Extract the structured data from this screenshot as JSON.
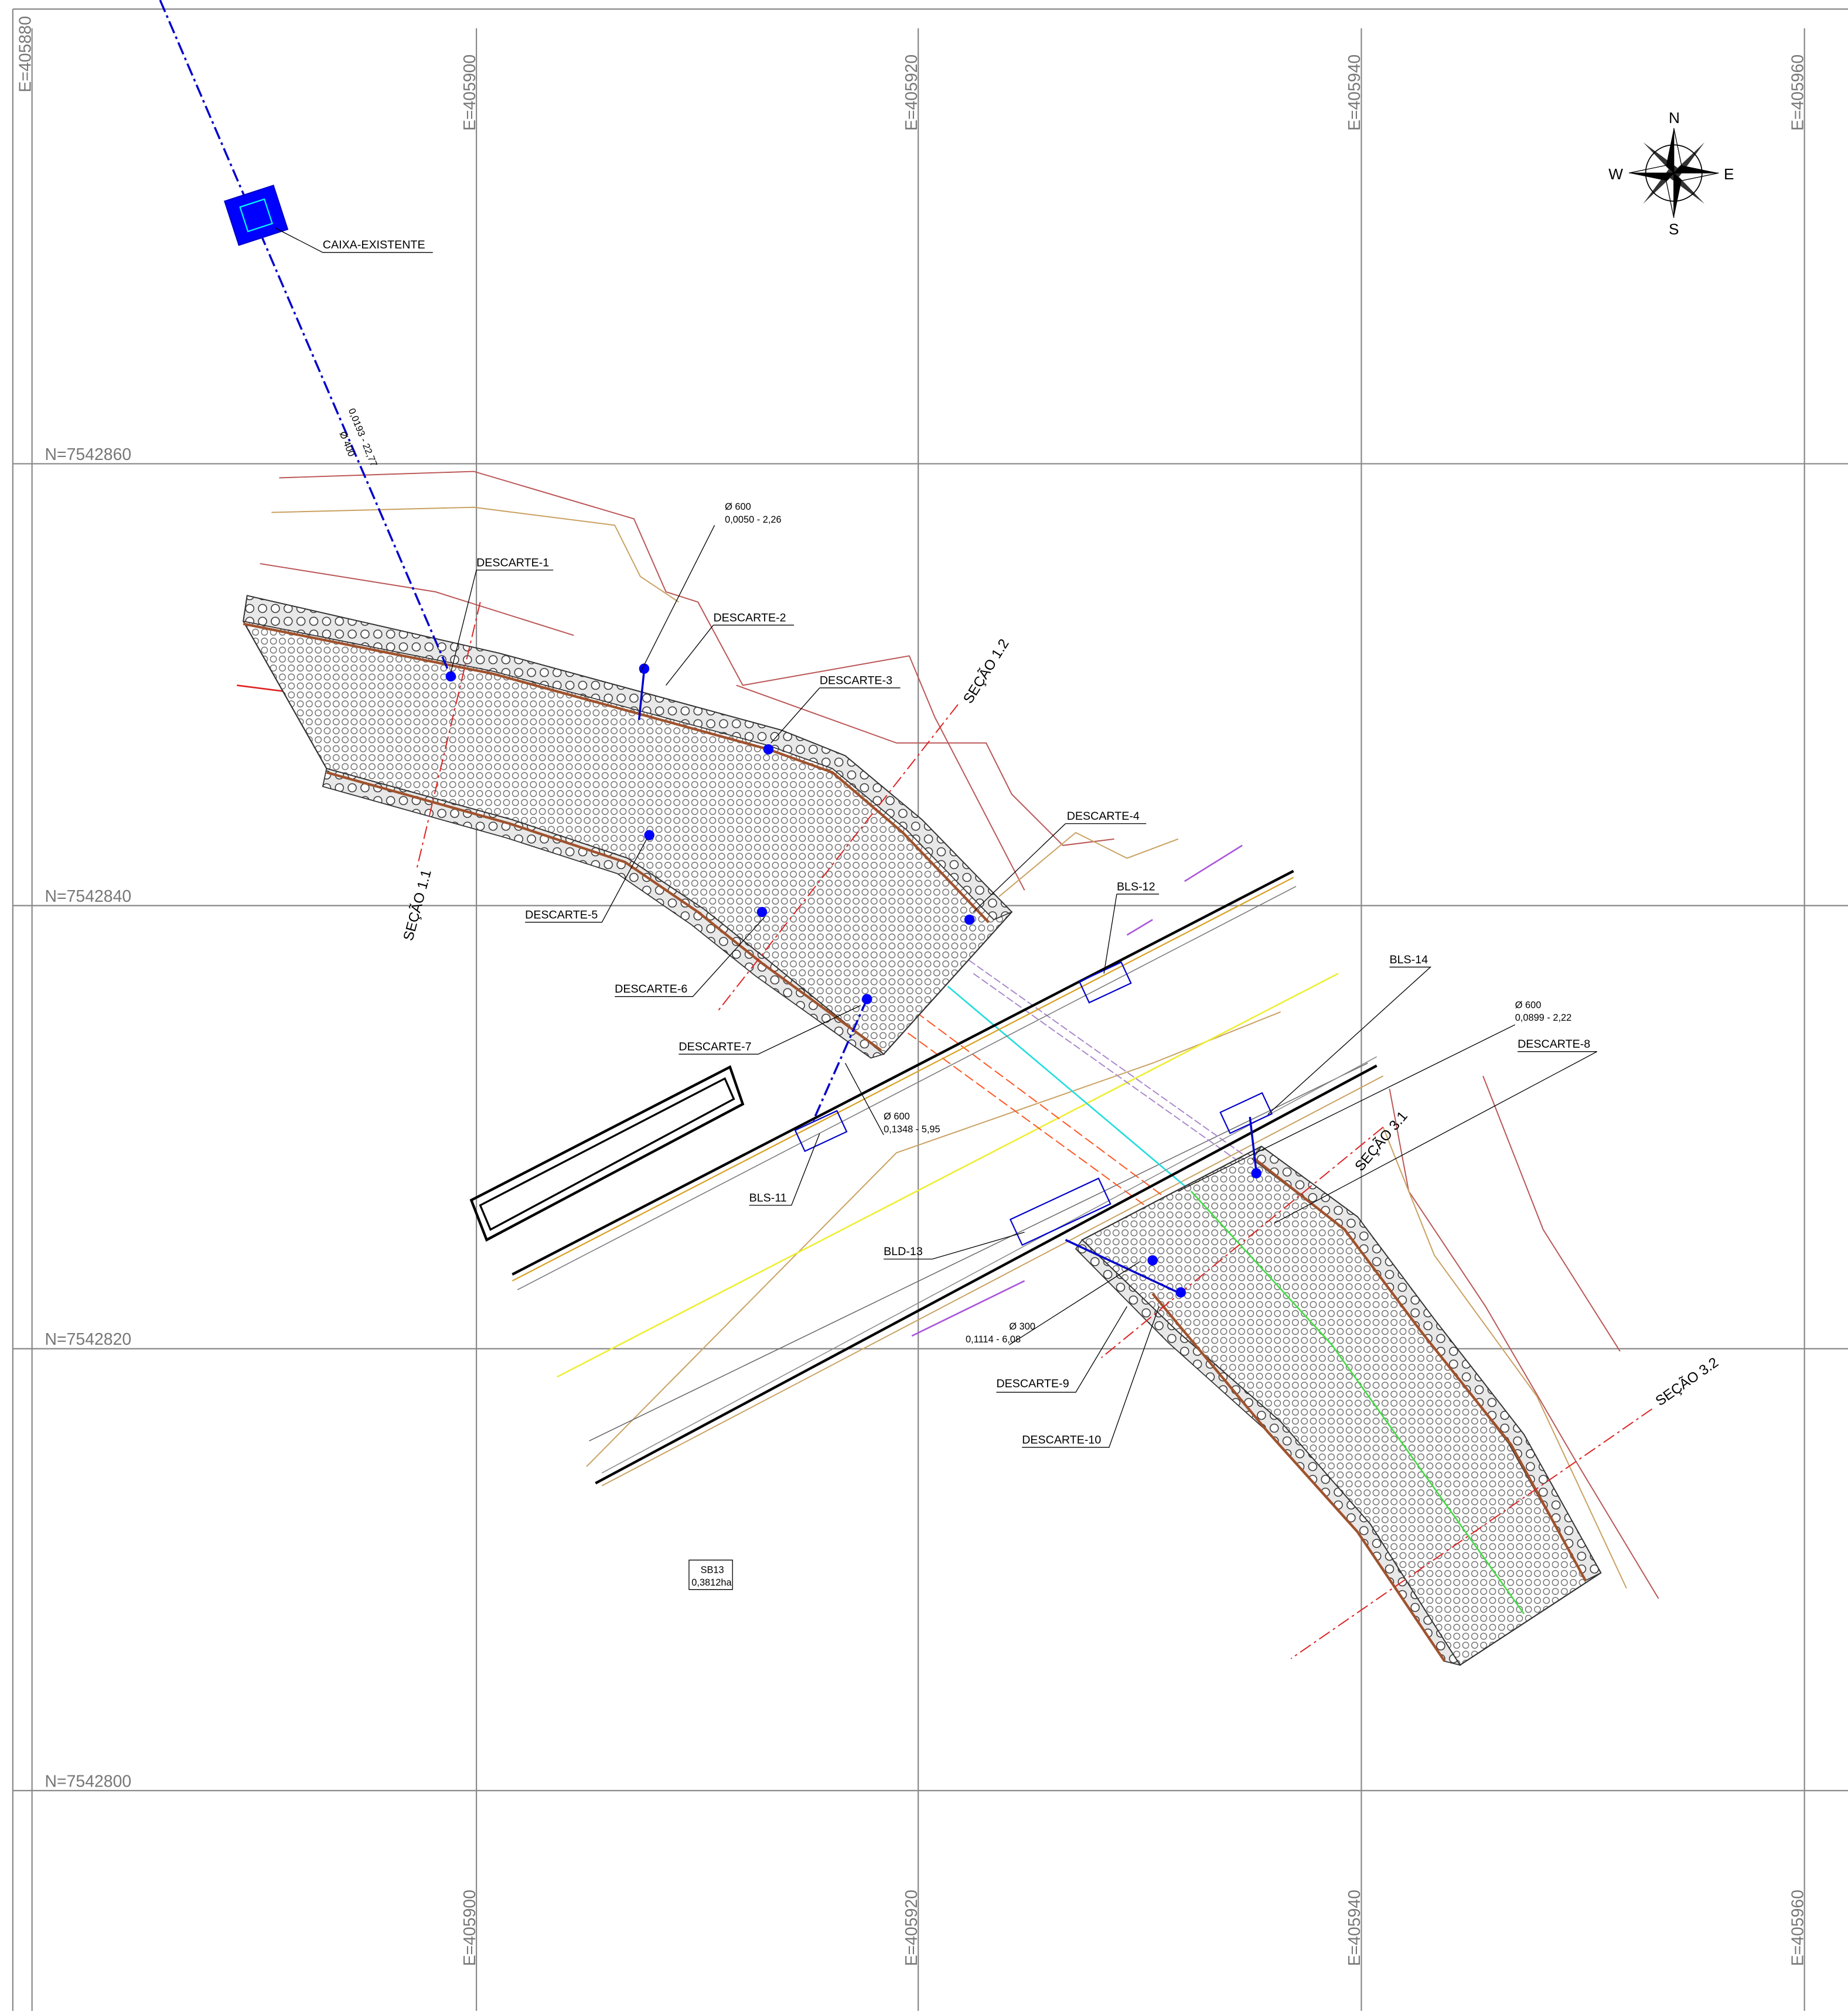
{
  "grid": {
    "eastings_top": [
      "E=405880",
      "E=405900",
      "E=405920",
      "E=405940",
      "E=405960"
    ],
    "eastings_bottom": [
      "E=405900",
      "E=405920",
      "E=405940",
      "E=405960"
    ],
    "northings": [
      "N=7542860",
      "N=7542840",
      "N=7542820",
      "N=7542800"
    ]
  },
  "compass": {
    "n": "N",
    "s": "S",
    "w": "W",
    "e": "E"
  },
  "annotations": [
    "CAIXA-EXISTENTE",
    "Ø 600",
    "0,0050 - 2,26",
    "DESCARTE-1",
    "DESCARTE-2",
    "DESCARTE-3",
    "SEÇÃO 1.2",
    "DESCARTE-4",
    "BLS-12",
    "DESCARTE-5",
    "SEÇÃO 1.1",
    "DESCARTE-6",
    "BLS-14",
    "Ø 600",
    "0,0899 - 2,22",
    "DESCARTE-8",
    "DESCARTE-7",
    "Ø 600",
    "0,1348 - 5,95",
    "SEÇÃO 3.1",
    "BLS-11",
    "BLD-13",
    "Ø 300",
    "0,1114 - 6,08",
    "SEÇÃO 3.2",
    "DESCARTE-9",
    "DESCARTE-10",
    "SB13",
    "0,3812ha",
    "0,0193 - 22,77",
    "Ø 400"
  ]
}
